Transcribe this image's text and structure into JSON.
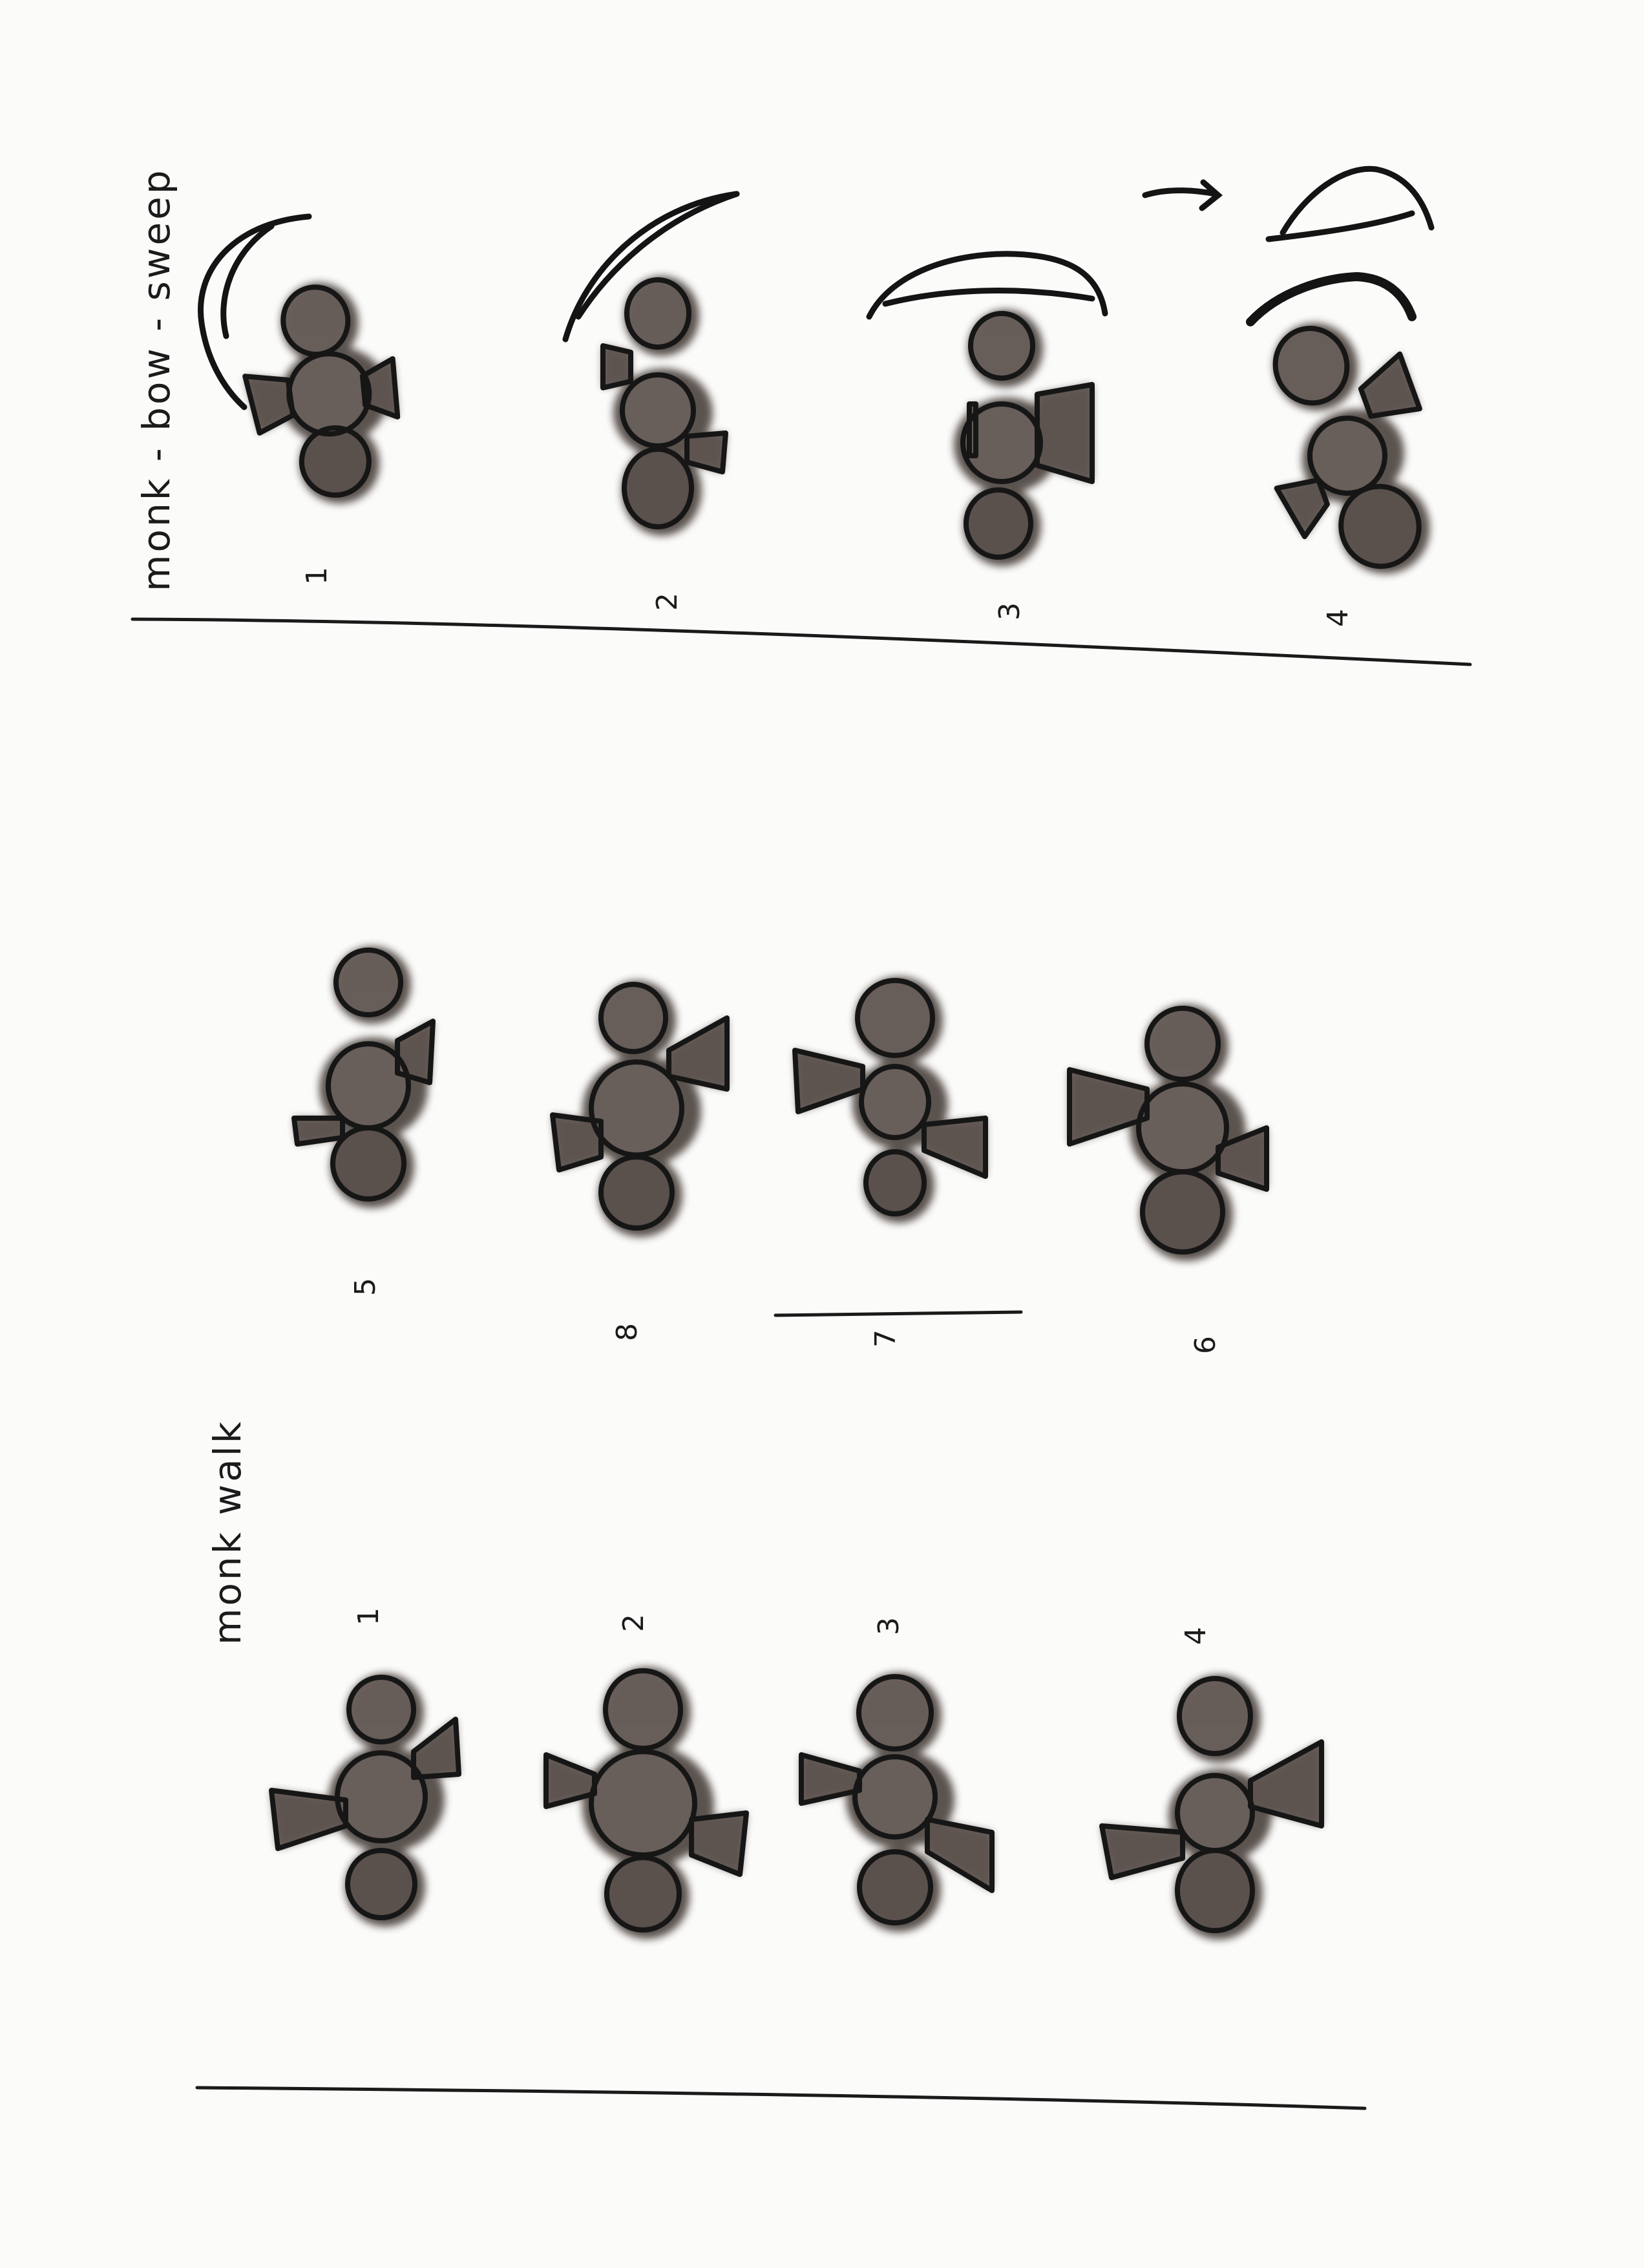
{
  "sheet": {
    "ink_color": "#161616",
    "wash_color": "#4d4441",
    "paper_color": "#fbfbf9"
  },
  "bow_sweep": {
    "title": "monk - bow - sweep",
    "frames": [
      {
        "label": "1",
        "pose": "bow-tilt-left"
      },
      {
        "label": "2",
        "pose": "bow-upright"
      },
      {
        "label": "3",
        "pose": "bow-sweep"
      },
      {
        "label": "4",
        "pose": "bow-reach"
      }
    ]
  },
  "walk": {
    "title": "monk walk",
    "frames_top": [
      {
        "label": "5",
        "pose": "walk-5"
      },
      {
        "label": "8",
        "pose": "walk-8"
      },
      {
        "label": "7",
        "pose": "walk-7"
      },
      {
        "label": "6",
        "pose": "walk-6"
      }
    ],
    "frames_bottom": [
      {
        "label": "1",
        "pose": "walk-1"
      },
      {
        "label": "2",
        "pose": "walk-2"
      },
      {
        "label": "3",
        "pose": "walk-3"
      },
      {
        "label": "4",
        "pose": "walk-4"
      }
    ]
  }
}
